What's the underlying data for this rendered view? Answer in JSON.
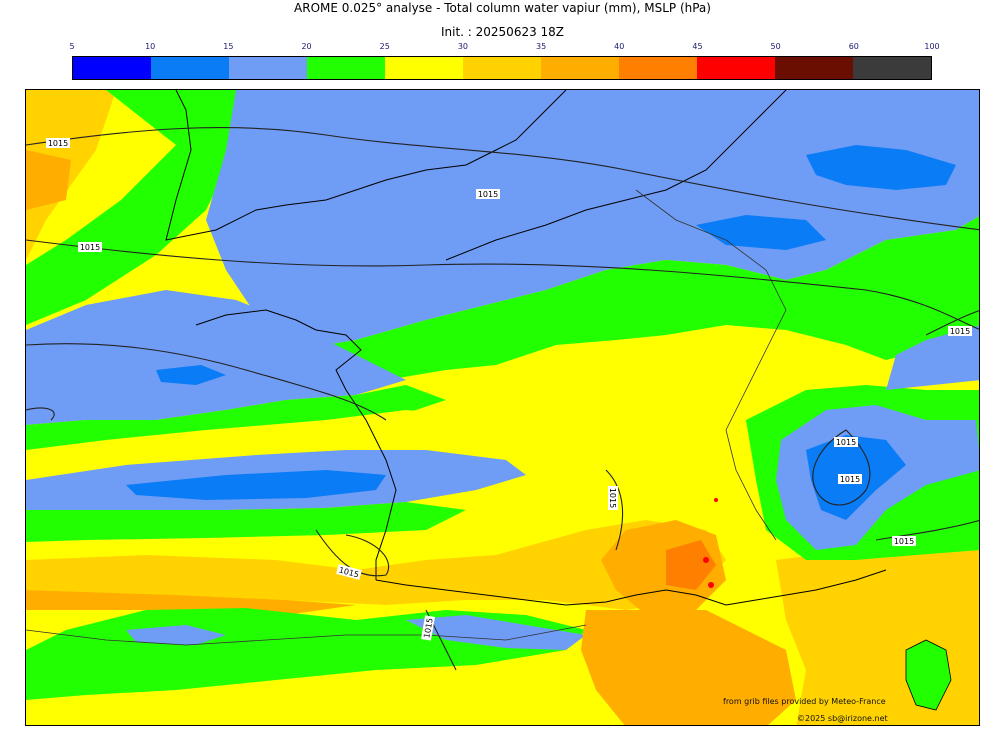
{
  "title": "AROME 0.025° analyse - Total column water vapiur (mm), MSLP (hPa)",
  "init": "Init. : 20250623 18Z",
  "colorbar": {
    "ticks": [
      "5",
      "10",
      "15",
      "20",
      "25",
      "30",
      "35",
      "40",
      "45",
      "50",
      "60",
      "100"
    ],
    "colors": [
      "#0000ff",
      "#0a7cf5",
      "#6f9cf5",
      "#22ff00",
      "#ffff00",
      "#ffd200",
      "#ffae00",
      "#ff8000",
      "#ff0000",
      "#6b0e02",
      "#3b3b3b"
    ]
  },
  "isobar_labels": [
    "1015",
    "1015",
    "1015",
    "1015",
    "1015",
    "1015",
    "1015",
    "1015",
    "1015",
    "1015"
  ],
  "credits": {
    "line1": "from grib files provided by Meteo-France",
    "line2": "©2025 sb@irizone.net"
  }
}
